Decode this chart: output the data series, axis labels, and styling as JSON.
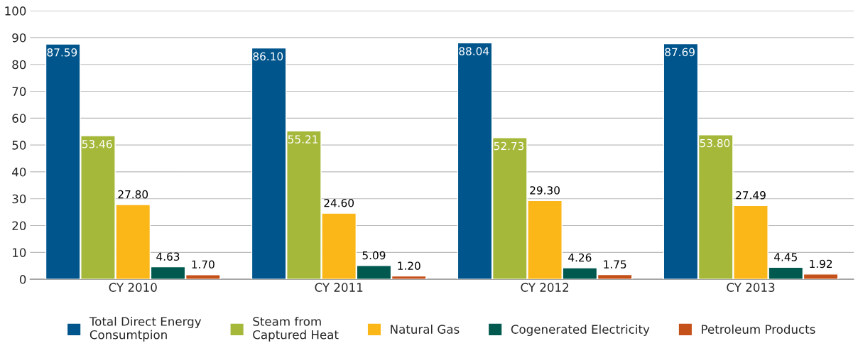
{
  "chart_data": {
    "type": "bar",
    "categories": [
      "CY 2010",
      "CY 2011",
      "CY 2012",
      "CY 2013"
    ],
    "series": [
      {
        "name": "Total Direct Energy\nConsumtpion",
        "color": "#00558c",
        "values": [
          87.59,
          86.1,
          88.04,
          87.69
        ],
        "value_labels": [
          "87.59",
          "86.10",
          "88.04",
          "87.69"
        ]
      },
      {
        "name": "Steam from\nCaptured Heat",
        "color": "#a5b83a",
        "values": [
          53.46,
          55.21,
          52.73,
          53.8
        ],
        "value_labels": [
          "53.46",
          "55.21",
          "52.73",
          "53.80"
        ]
      },
      {
        "name": "Natural Gas",
        "color": "#fbb717",
        "values": [
          27.8,
          24.6,
          29.3,
          27.49
        ],
        "value_labels": [
          "27.80",
          "24.60",
          "29.30",
          "27.49"
        ]
      },
      {
        "name": "Cogenerated Electricity",
        "color": "#00594f",
        "values": [
          4.63,
          5.09,
          4.26,
          4.45
        ],
        "value_labels": [
          "4.63",
          "5.09",
          "4.26",
          "4.45"
        ]
      },
      {
        "name": "Petroleum Products",
        "color": "#c5511a",
        "values": [
          1.7,
          1.2,
          1.75,
          1.92
        ],
        "value_labels": [
          "1.70",
          "1.20",
          "1.75",
          "1.92"
        ]
      }
    ],
    "ylim": [
      0,
      100
    ],
    "yticks": [
      0,
      10,
      20,
      30,
      40,
      50,
      60,
      70,
      80,
      90,
      100
    ],
    "grid": "y",
    "legend": "bottom"
  }
}
